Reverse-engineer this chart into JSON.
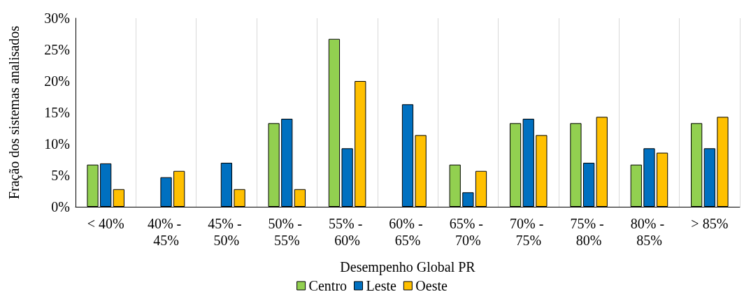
{
  "chart_data": {
    "type": "bar",
    "xlabel": "Desempenho Global PR",
    "ylabel": "Fração dos sistemas analisados",
    "categories": [
      "< 40%",
      "40% - 45%",
      "45% - 50%",
      "50% - 55%",
      "55% - 60%",
      "60% - 65%",
      "65% - 70%",
      "70% - 75%",
      "75% - 80%",
      "80% - 85%",
      "> 85%"
    ],
    "series": [
      {
        "name": "Centro",
        "color": "#92d050",
        "values": [
          6.7,
          0,
          0,
          13.3,
          26.7,
          0,
          6.7,
          13.3,
          13.3,
          6.7,
          13.3
        ]
      },
      {
        "name": "Leste",
        "color": "#0070c0",
        "values": [
          6.9,
          4.7,
          7.0,
          14.0,
          9.3,
          16.3,
          2.3,
          14.0,
          7.0,
          9.3,
          9.3
        ]
      },
      {
        "name": "Oeste",
        "color": "#ffc000",
        "values": [
          2.8,
          5.7,
          2.8,
          2.8,
          20.0,
          11.4,
          5.7,
          11.4,
          14.3,
          8.6,
          14.3
        ]
      }
    ],
    "ylim": [
      0,
      30
    ],
    "yticks": [
      {
        "value": 0,
        "label": "0%"
      },
      {
        "value": 5,
        "label": "5%"
      },
      {
        "value": 10,
        "label": "10%"
      },
      {
        "value": 15,
        "label": "15%"
      },
      {
        "value": 20,
        "label": "20%"
      },
      {
        "value": 25,
        "label": "25%"
      },
      {
        "value": 30,
        "label": "30%"
      }
    ],
    "grid": "x",
    "legend": "bottom"
  }
}
